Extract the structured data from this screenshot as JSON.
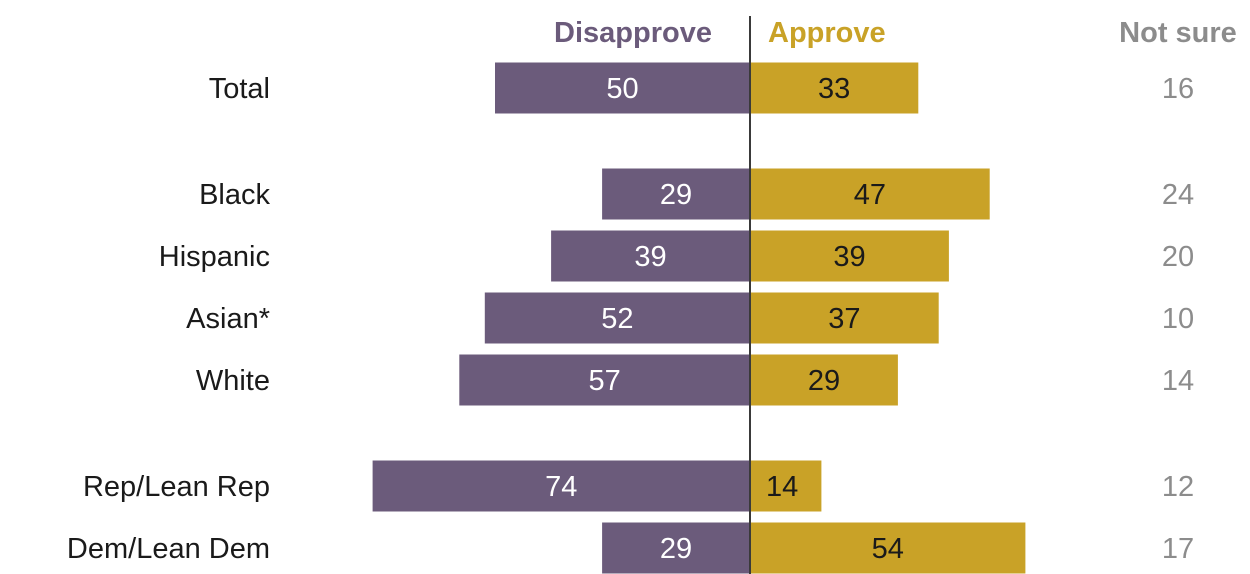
{
  "chart_data": {
    "type": "bar",
    "headers": {
      "disapprove": "Disapprove",
      "approve": "Approve",
      "not_sure": "Not sure"
    },
    "colors": {
      "disapprove": "#6b5b7b",
      "approve": "#c9a227",
      "not_sure": "#8c8c8c",
      "axis": "#3a3a3a"
    },
    "rows": [
      {
        "label": "Total",
        "group": 0,
        "disapprove": 50,
        "approve": 33,
        "not_sure": 16
      },
      {
        "label": "Black",
        "group": 1,
        "disapprove": 29,
        "approve": 47,
        "not_sure": 24
      },
      {
        "label": "Hispanic",
        "group": 1,
        "disapprove": 39,
        "approve": 39,
        "not_sure": 20
      },
      {
        "label": "Asian*",
        "group": 1,
        "disapprove": 52,
        "approve": 37,
        "not_sure": 10
      },
      {
        "label": "White",
        "group": 1,
        "disapprove": 57,
        "approve": 29,
        "not_sure": 14
      },
      {
        "label": "Rep/Lean Rep",
        "group": 2,
        "disapprove": 74,
        "approve": 14,
        "not_sure": 12
      },
      {
        "label": "Dem/Lean Dem",
        "group": 2,
        "disapprove": 29,
        "approve": 54,
        "not_sure": 17
      }
    ]
  }
}
